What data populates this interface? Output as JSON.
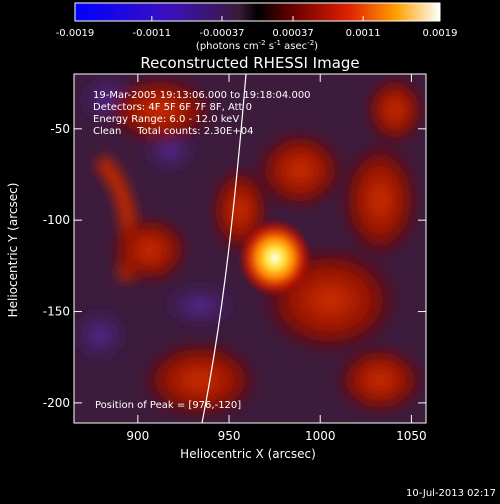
{
  "colorbar": {
    "tick_labels": [
      "-0.0019",
      "-0.0011",
      "-0.00037",
      "0.00037",
      "0.0011",
      "0.0019"
    ],
    "range": [
      -0.0019,
      0.0019
    ],
    "units_label": "(photons cm",
    "units_exp1": "-2",
    "units_mid": " s",
    "units_exp2": "-1",
    "units_tail": " asec",
    "units_exp3": "-2",
    "units_close": ")"
  },
  "chart_data": {
    "type": "heatmap",
    "title": "Reconstructed RHESSI Image",
    "xlabel": "Heliocentric X (arcsec)",
    "ylabel": "Heliocentric Y (arcsec)",
    "xlim": [
      865,
      1058
    ],
    "ylim": [
      -211,
      -20
    ],
    "x_ticks": [
      900,
      950,
      1000,
      1050
    ],
    "y_ticks": [
      -50,
      -100,
      -150,
      -200
    ],
    "peak": [
      976,
      -120
    ],
    "info_lines": [
      "19-Mar-2005 19:13:06.000 to 19:18:04.000",
      "Detectors: 4F 5F 6F 7F 8F, Att 0",
      "Energy Range: 6.0 - 12.0 keV",
      "Clean     Total counts: 2.30E+04"
    ],
    "peak_label": "Position of Peak = [976,-120]",
    "footer_date": "10-Jul-2013 02:17"
  }
}
